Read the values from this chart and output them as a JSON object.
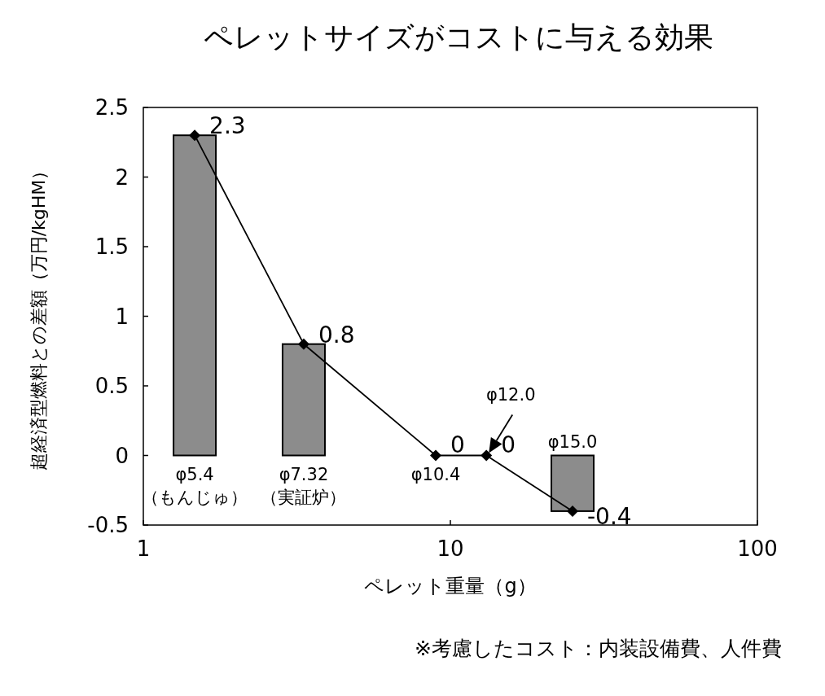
{
  "chart_data": {
    "type": "bar",
    "title": "ペレットサイズがコストに与える効果",
    "xlabel": "ペレット重量（g）",
    "ylabel": "超経済型燃料との差額（万円/kgHM）",
    "log": "x",
    "xlim": [
      1,
      100
    ],
    "xticks": [
      1,
      10,
      100
    ],
    "ylim": [
      -0.5,
      2.5
    ],
    "yticks": [
      -0.5,
      0,
      0.5,
      1,
      1.5,
      2,
      2.5
    ],
    "series": [
      {
        "color": "#8c8c8c",
        "x": [
          1.47,
          3.33,
          25.0
        ],
        "values": [
          2.3,
          0.8,
          -0.4
        ]
      },
      {
        "type": "line",
        "color": "#000000",
        "marker": "diamond",
        "x": [
          1.47,
          3.33,
          8.96,
          13.1,
          25.0
        ],
        "values": [
          2.3,
          0.8,
          0,
          0,
          -0.4
        ],
        "value_labels": [
          "2.3",
          "0.8",
          "0",
          "0",
          "-0.4"
        ]
      }
    ],
    "annotations": [
      {
        "text": "φ5.4\n（もんじゅ）",
        "x": 1.47,
        "y": 0
      },
      {
        "text": "φ7.32\n（実証炉）",
        "x": 3.33,
        "y": 0
      },
      {
        "text": "φ10.4",
        "x": 8.96,
        "y": 0
      },
      {
        "text": "φ12.0",
        "x": 13.1,
        "y": 0
      },
      {
        "text": "φ15.0",
        "x": 25.0,
        "y": 0
      },
      "※考慮したコスト：内装設備費、人件費"
    ]
  }
}
